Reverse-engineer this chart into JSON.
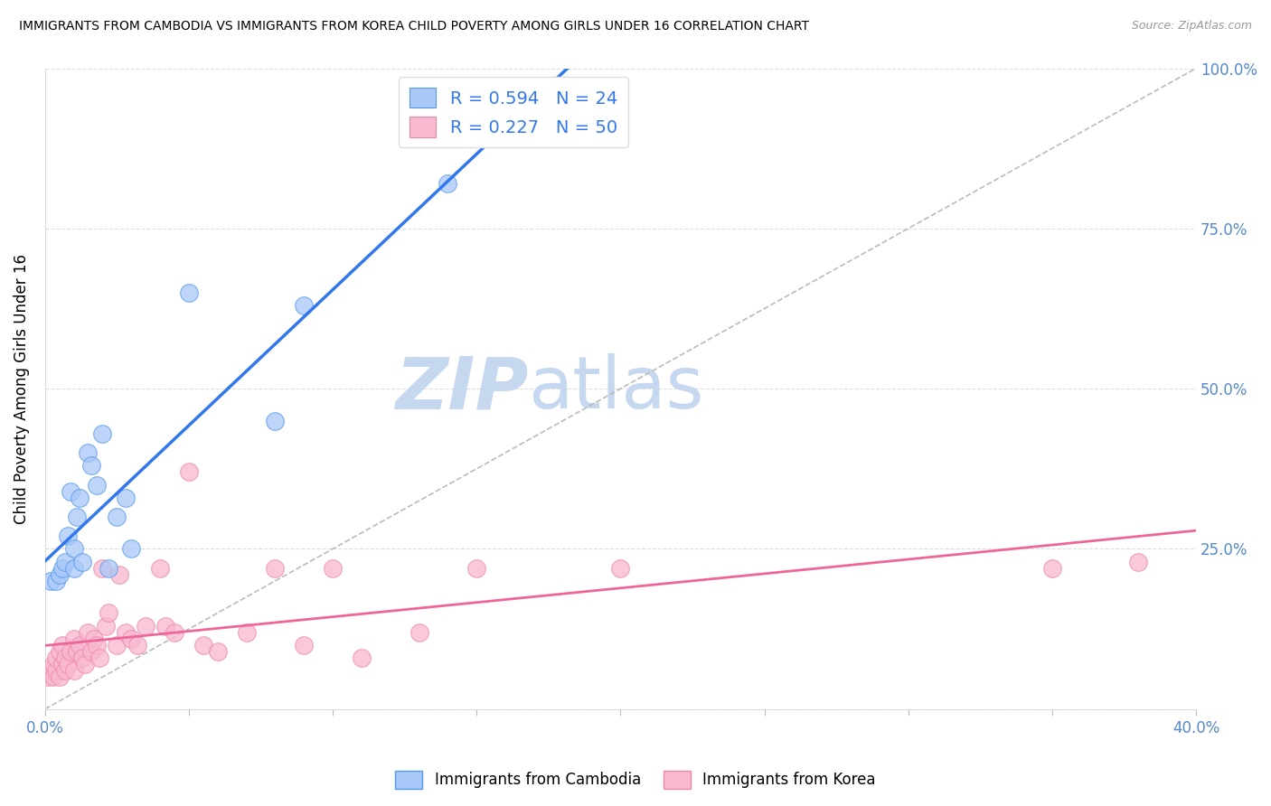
{
  "title": "IMMIGRANTS FROM CAMBODIA VS IMMIGRANTS FROM KOREA CHILD POVERTY AMONG GIRLS UNDER 16 CORRELATION CHART",
  "source": "Source: ZipAtlas.com",
  "xlabel": "",
  "ylabel": "Child Poverty Among Girls Under 16",
  "xmin": 0.0,
  "xmax": 0.4,
  "ymin": 0.0,
  "ymax": 1.0,
  "xticks": [
    0.0,
    0.05,
    0.1,
    0.15,
    0.2,
    0.25,
    0.3,
    0.35,
    0.4
  ],
  "xticklabels_bottom": [
    "0.0%",
    "",
    "",
    "",
    "",
    "",
    "",
    "",
    "40.0%"
  ],
  "yticks": [
    0.0,
    0.25,
    0.5,
    0.75,
    1.0
  ],
  "yticklabels": [
    "",
    "25.0%",
    "50.0%",
    "75.0%",
    "100.0%"
  ],
  "cambodia_R": 0.594,
  "cambodia_N": 24,
  "korea_R": 0.227,
  "korea_N": 50,
  "cambodia_color": "#a8c8f8",
  "korea_color": "#f8b8d0",
  "cambodia_edge": "#5599ee",
  "korea_edge": "#ee88aa",
  "blue_line_color": "#3377ee",
  "pink_line_color": "#ee6699",
  "ref_line_color": "#bbbbbb",
  "watermark_zip": "ZIP",
  "watermark_atlas": "atlas",
  "watermark_color_zip": "#c5d8ef",
  "watermark_color_atlas": "#c5d8ef",
  "legend_text_color": "#3377ee",
  "tick_color": "#5588cc",
  "grid_color": "#dddddd",
  "cambodia_x": [
    0.002,
    0.004,
    0.005,
    0.006,
    0.007,
    0.008,
    0.009,
    0.01,
    0.01,
    0.011,
    0.012,
    0.013,
    0.015,
    0.016,
    0.018,
    0.02,
    0.022,
    0.025,
    0.028,
    0.03,
    0.05,
    0.08,
    0.09,
    0.14
  ],
  "cambodia_y": [
    0.2,
    0.2,
    0.21,
    0.22,
    0.23,
    0.27,
    0.34,
    0.25,
    0.22,
    0.3,
    0.33,
    0.23,
    0.4,
    0.38,
    0.35,
    0.43,
    0.22,
    0.3,
    0.33,
    0.25,
    0.65,
    0.45,
    0.63,
    0.82
  ],
  "korea_x": [
    0.001,
    0.002,
    0.003,
    0.003,
    0.004,
    0.004,
    0.005,
    0.005,
    0.006,
    0.006,
    0.007,
    0.007,
    0.008,
    0.009,
    0.01,
    0.01,
    0.011,
    0.012,
    0.013,
    0.014,
    0.015,
    0.016,
    0.017,
    0.018,
    0.019,
    0.02,
    0.021,
    0.022,
    0.025,
    0.026,
    0.028,
    0.03,
    0.032,
    0.035,
    0.04,
    0.042,
    0.045,
    0.05,
    0.055,
    0.06,
    0.07,
    0.08,
    0.09,
    0.1,
    0.11,
    0.13,
    0.15,
    0.2,
    0.35,
    0.38
  ],
  "korea_y": [
    0.05,
    0.06,
    0.05,
    0.07,
    0.06,
    0.08,
    0.05,
    0.09,
    0.07,
    0.1,
    0.06,
    0.08,
    0.07,
    0.09,
    0.06,
    0.11,
    0.09,
    0.1,
    0.08,
    0.07,
    0.12,
    0.09,
    0.11,
    0.1,
    0.08,
    0.22,
    0.13,
    0.15,
    0.1,
    0.21,
    0.12,
    0.11,
    0.1,
    0.13,
    0.22,
    0.13,
    0.12,
    0.37,
    0.1,
    0.09,
    0.12,
    0.22,
    0.1,
    0.22,
    0.08,
    0.12,
    0.22,
    0.22,
    0.22,
    0.23
  ]
}
